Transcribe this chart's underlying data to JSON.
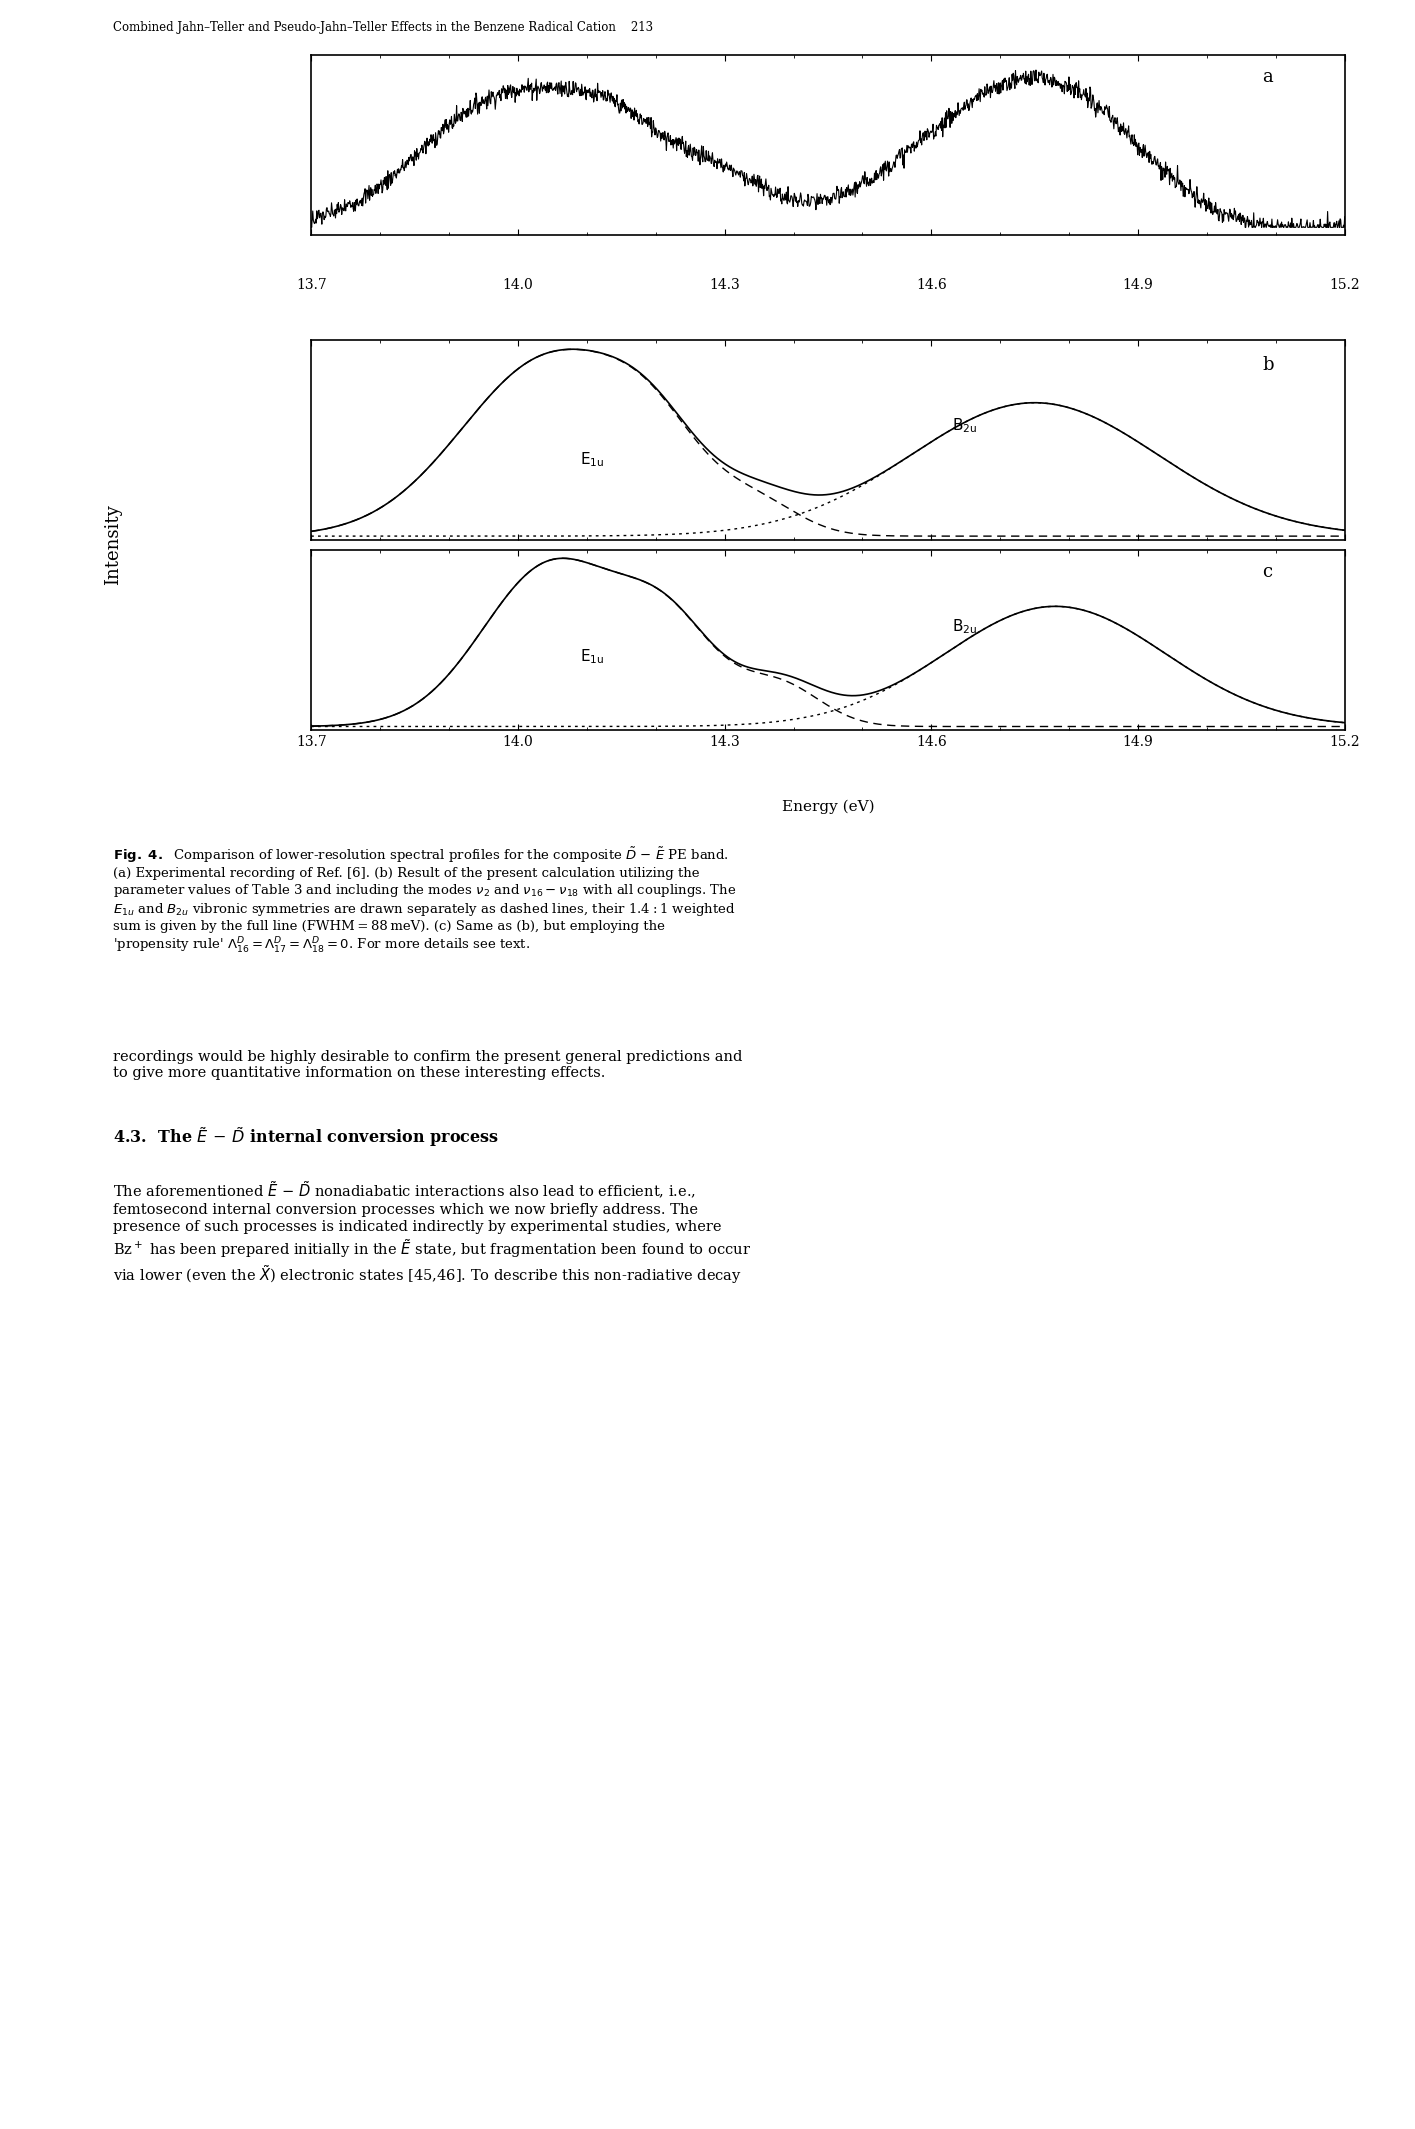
{
  "header_text": "Combined Jahn–Teller and Pseudo-Jahn–Teller Effects in the Benzene Radical Cation    213",
  "xmin": 13.7,
  "xmax": 15.2,
  "xticks": [
    13.7,
    14.0,
    14.3,
    14.6,
    14.9,
    15.2
  ],
  "xlabel": "Energy (eV)",
  "ylabel": "Intensity",
  "panel_labels": [
    "a",
    "b",
    "c"
  ],
  "fig_caption_bold": "Fig. 4.",
  "fig_caption_rest": " Comparison of lower-resolution spectral profiles for the composite Ḋ − Ḗ PE band. (a) Experimental recording of Ref. [6]. (b) Result of the present calculation utilizing the parameter values of Table 3 and including the modes ν₂ and ν₁₆ − ν₁₈ with all couplings. The E₁ᵤ and B₂ᵤ vibronic symmetries are drawn separately as dashed lines, their 1.4 : 1 weighted sum is given by the full line (FWHM = 88 meV). (c) Same as (b), but employing the ‘propensity rule’ Λᴰ₆ = Λᴰ₇ = Λᴰ₈ = 0. For more details see text.",
  "section_header": "4.3. The Ḗ − Ḋ internal conversion process",
  "body_text": "The aforementioned Ḗ − Ḋ nonadiabatic interactions also lead to efficient, i.e., femtosecond internal conversion processes which we now briefly address. The presence of such processes is indicated indirectly by experimental studies, where Bz⁺ has been prepared initially in the Ḗ state, but fragmentation been found to occur via lower (even the X̃) electronic states [45,46]. To describe this non-radiative decay",
  "recordings_text": "recordings would be highly desirable to confirm the present general predictions and to give more quantitative information on these interesting effects.",
  "background_color": "#ffffff",
  "line_color": "#000000"
}
